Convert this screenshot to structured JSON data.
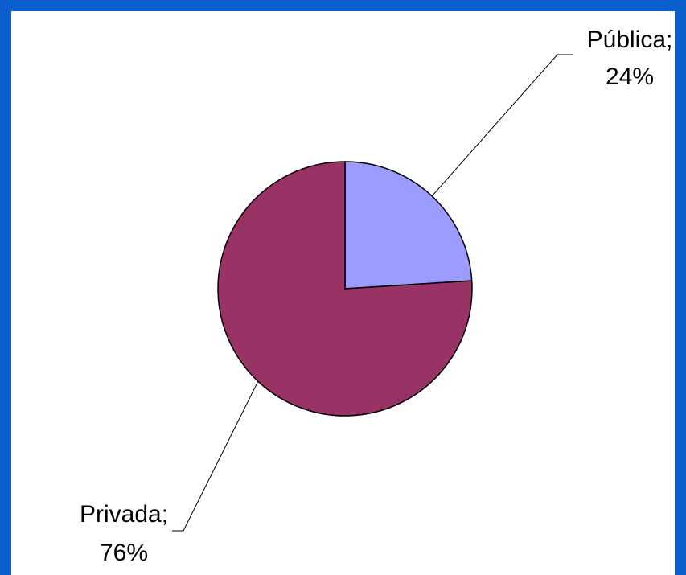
{
  "chart_data": {
    "type": "pie",
    "title": "",
    "categories": [
      "Pública",
      "Privada"
    ],
    "values": [
      24,
      76
    ],
    "colors": [
      "#9c9cff",
      "#993366"
    ],
    "labels": [
      {
        "category": "Pública;",
        "percent": "24%"
      },
      {
        "category": "Privada;",
        "percent": "76%"
      }
    ],
    "legend": "none"
  }
}
